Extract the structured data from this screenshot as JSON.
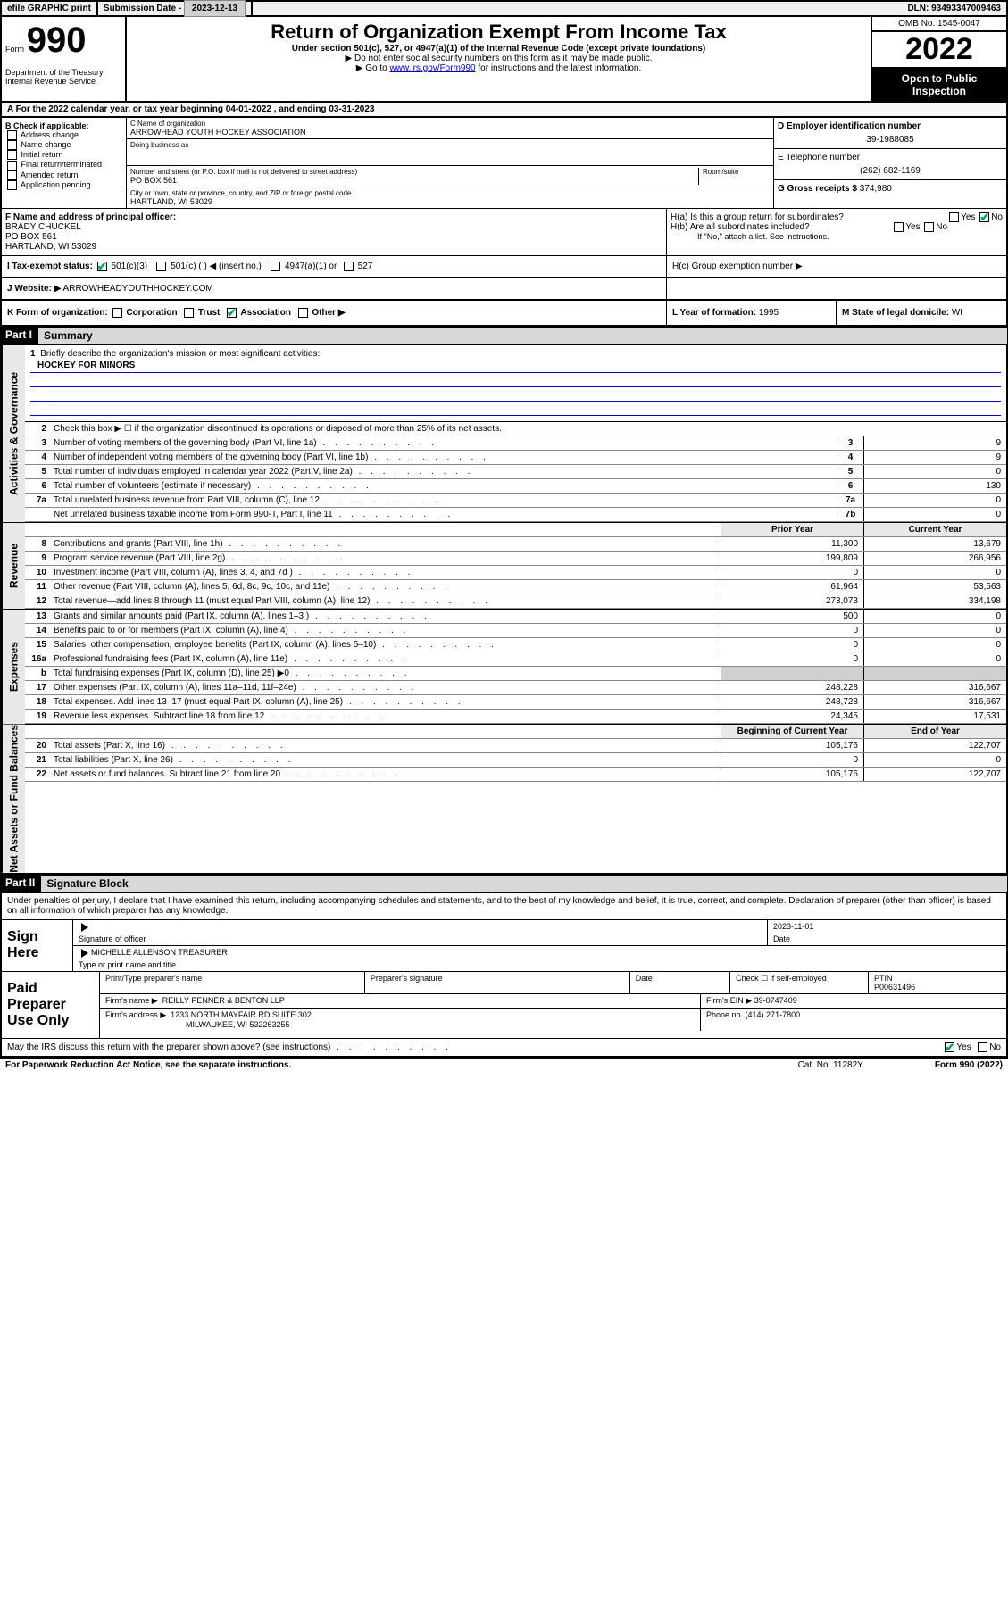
{
  "topbar": {
    "efile": "efile GRAPHIC print",
    "sub_label": "Submission Date - ",
    "sub_date": "2023-12-13",
    "dln_label": "DLN: ",
    "dln": "93493347009463"
  },
  "header": {
    "form_word": "Form",
    "form_num": "990",
    "dept": "Department of the Treasury\nInternal Revenue Service",
    "title": "Return of Organization Exempt From Income Tax",
    "sub": "Under section 501(c), 527, or 4947(a)(1) of the Internal Revenue Code (except private foundations)",
    "note1": "▶ Do not enter social security numbers on this form as it may be made public.",
    "note2_pre": "▶ Go to ",
    "note2_link": "www.irs.gov/Form990",
    "note2_post": " for instructions and the latest information.",
    "omb": "OMB No. 1545-0047",
    "year": "2022",
    "open": "Open to Public Inspection"
  },
  "rowA": {
    "text": "A For the 2022 calendar year, or tax year beginning 04-01-2022   , and ending 03-31-2023"
  },
  "colB": {
    "label": "B Check if applicable:",
    "items": [
      "Address change",
      "Name change",
      "Initial return",
      "Final return/terminated",
      "Amended return",
      "Application pending"
    ]
  },
  "colC": {
    "name_lbl": "C Name of organization",
    "name": "ARROWHEAD YOUTH HOCKEY ASSOCIATION",
    "dba_lbl": "Doing business as",
    "dba": "",
    "addr_lbl": "Number and street (or P.O. box if mail is not delivered to street address)",
    "room_lbl": "Room/suite",
    "addr": "PO BOX 561",
    "city_lbl": "City or town, state or province, country, and ZIP or foreign postal code",
    "city": "HARTLAND, WI  53029"
  },
  "colDE": {
    "d_lbl": "D Employer identification number",
    "ein": "39-1988085",
    "e_lbl": "E Telephone number",
    "phone": "(262) 682-1169",
    "g_lbl": "G Gross receipts $ ",
    "gross": "374,980"
  },
  "principal": {
    "f_lbl": "F Name and address of principal officer:",
    "name": "BRADY CHUCKEL",
    "addr1": "PO BOX 561",
    "addr2": "HARTLAND, WI  53029",
    "ha": "H(a)  Is this a group return for subordinates?",
    "hb": "H(b)  Are all subordinates included?",
    "hb_note": "If \"No,\" attach a list. See instructions.",
    "hc": "H(c)  Group exemption number ▶",
    "yes": "Yes",
    "no": "No"
  },
  "status": {
    "i_lbl": "I  Tax-exempt status:",
    "i_501c3": "501(c)(3)",
    "i_501c": "501(c) (  ) ◀ (insert no.)",
    "i_4947": "4947(a)(1) or",
    "i_527": "527",
    "j_lbl": "J  Website: ▶",
    "website": "ARROWHEADYOUTHHOCKEY.COM"
  },
  "korg": {
    "k_lbl": "K Form of organization:",
    "corp": "Corporation",
    "trust": "Trust",
    "assoc": "Association",
    "other": "Other ▶",
    "l_lbl": "L Year of formation: ",
    "l_val": "1995",
    "m_lbl": "M State of legal domicile: ",
    "m_val": "WI"
  },
  "part1": {
    "hdr": "Part I",
    "title": "Summary",
    "q1": "Briefly describe the organization's mission or most significant activities:",
    "mission": "HOCKEY FOR MINORS",
    "q2": "Check this box ▶ ☐  if the organization discontinued its operations or disposed of more than 25% of its net assets.",
    "sections": {
      "gov": "Activities & Governance",
      "rev": "Revenue",
      "exp": "Expenses",
      "net": "Net Assets or Fund Balances"
    },
    "lines_gov": [
      {
        "n": "3",
        "t": "Number of voting members of the governing body (Part VI, line 1a)",
        "b": "3",
        "v": "9"
      },
      {
        "n": "4",
        "t": "Number of independent voting members of the governing body (Part VI, line 1b)",
        "b": "4",
        "v": "9"
      },
      {
        "n": "5",
        "t": "Total number of individuals employed in calendar year 2022 (Part V, line 2a)",
        "b": "5",
        "v": "0"
      },
      {
        "n": "6",
        "t": "Total number of volunteers (estimate if necessary)",
        "b": "6",
        "v": "130"
      },
      {
        "n": "7a",
        "t": "Total unrelated business revenue from Part VIII, column (C), line 12",
        "b": "7a",
        "v": "0"
      },
      {
        "n": "",
        "t": "Net unrelated business taxable income from Form 990-T, Part I, line 11",
        "b": "7b",
        "v": "0"
      }
    ],
    "col_hdr_prior": "Prior Year",
    "col_hdr_curr": "Current Year",
    "lines_rev": [
      {
        "n": "8",
        "t": "Contributions and grants (Part VIII, line 1h)",
        "p": "11,300",
        "c": "13,679"
      },
      {
        "n": "9",
        "t": "Program service revenue (Part VIII, line 2g)",
        "p": "199,809",
        "c": "266,956"
      },
      {
        "n": "10",
        "t": "Investment income (Part VIII, column (A), lines 3, 4, and 7d )",
        "p": "0",
        "c": "0"
      },
      {
        "n": "11",
        "t": "Other revenue (Part VIII, column (A), lines 5, 6d, 8c, 9c, 10c, and 11e)",
        "p": "61,964",
        "c": "53,563"
      },
      {
        "n": "12",
        "t": "Total revenue—add lines 8 through 11 (must equal Part VIII, column (A), line 12)",
        "p": "273,073",
        "c": "334,198"
      }
    ],
    "lines_exp": [
      {
        "n": "13",
        "t": "Grants and similar amounts paid (Part IX, column (A), lines 1–3 )",
        "p": "500",
        "c": "0"
      },
      {
        "n": "14",
        "t": "Benefits paid to or for members (Part IX, column (A), line 4)",
        "p": "0",
        "c": "0"
      },
      {
        "n": "15",
        "t": "Salaries, other compensation, employee benefits (Part IX, column (A), lines 5–10)",
        "p": "0",
        "c": "0"
      },
      {
        "n": "16a",
        "t": "Professional fundraising fees (Part IX, column (A), line 11e)",
        "p": "0",
        "c": "0"
      },
      {
        "n": "b",
        "t": "Total fundraising expenses (Part IX, column (D), line 25) ▶0",
        "p": "",
        "c": "",
        "shade": true
      },
      {
        "n": "17",
        "t": "Other expenses (Part IX, column (A), lines 11a–11d, 11f–24e)",
        "p": "248,228",
        "c": "316,667"
      },
      {
        "n": "18",
        "t": "Total expenses. Add lines 13–17 (must equal Part IX, column (A), line 25)",
        "p": "248,728",
        "c": "316,667"
      },
      {
        "n": "19",
        "t": "Revenue less expenses. Subtract line 18 from line 12",
        "p": "24,345",
        "c": "17,531"
      }
    ],
    "col_hdr_beg": "Beginning of Current Year",
    "col_hdr_end": "End of Year",
    "lines_net": [
      {
        "n": "20",
        "t": "Total assets (Part X, line 16)",
        "p": "105,176",
        "c": "122,707"
      },
      {
        "n": "21",
        "t": "Total liabilities (Part X, line 26)",
        "p": "0",
        "c": "0"
      },
      {
        "n": "22",
        "t": "Net assets or fund balances. Subtract line 21 from line 20",
        "p": "105,176",
        "c": "122,707"
      }
    ]
  },
  "part2": {
    "hdr": "Part II",
    "title": "Signature Block",
    "intro": "Under penalties of perjury, I declare that I have examined this return, including accompanying schedules and statements, and to the best of my knowledge and belief, it is true, correct, and complete. Declaration of preparer (other than officer) is based on all information of which preparer has any knowledge.",
    "sign_here": "Sign Here",
    "sig_officer": "Signature of officer",
    "sig_date": "Date",
    "sig_date_val": "2023-11-01",
    "sig_name": "MICHELLE ALLENSON TREASURER",
    "sig_name_lbl": "Type or print name and title",
    "paid": "Paid Preparer Use Only",
    "prep_name_lbl": "Print/Type preparer's name",
    "prep_sig_lbl": "Preparer's signature",
    "prep_date_lbl": "Date",
    "prep_self": "Check ☐ if self-employed",
    "ptin_lbl": "PTIN",
    "ptin": "P00631496",
    "firm_name_lbl": "Firm's name    ▶",
    "firm_name": "REILLY PENNER & BENTON LLP",
    "firm_ein_lbl": "Firm's EIN ▶",
    "firm_ein": "39-0747409",
    "firm_addr_lbl": "Firm's address ▶",
    "firm_addr": "1233 NORTH MAYFAIR RD SUITE 302",
    "firm_city": "MILWAUKEE, WI  532263255",
    "firm_phone_lbl": "Phone no. ",
    "firm_phone": "(414) 271-7800",
    "discuss": "May the IRS discuss this return with the preparer shown above? (see instructions)",
    "yes": "Yes",
    "no": "No"
  },
  "footer": {
    "left": "For Paperwork Reduction Act Notice, see the separate instructions.",
    "mid": "Cat. No. 11282Y",
    "right": "Form 990 (2022)"
  }
}
